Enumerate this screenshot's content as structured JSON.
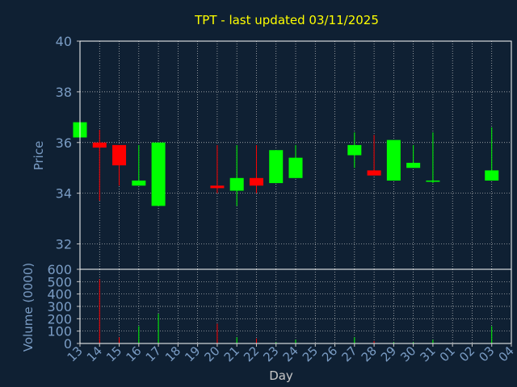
{
  "chart_data": {
    "type": "candlestick",
    "title": "TPT - last updated 03/11/2025",
    "xlabel": "Day",
    "price_panel": {
      "ylabel": "Price",
      "ylim": [
        31.0,
        40.0
      ],
      "yticks": [
        "32",
        "34",
        "36",
        "38",
        "40"
      ],
      "grid": true
    },
    "volume_panel": {
      "ylabel": "Volume (0000)",
      "ylim": [
        0,
        600
      ],
      "yticks": [
        "0",
        "100",
        "200",
        "300",
        "400",
        "500",
        "600"
      ],
      "grid": true
    },
    "days": [
      "13",
      "14",
      "15",
      "16",
      "17",
      "18",
      "19",
      "20",
      "21",
      "22",
      "23",
      "24",
      "25",
      "26",
      "27",
      "28",
      "29",
      "30",
      "31",
      "01",
      "02",
      "03",
      "04"
    ],
    "candles": [
      {
        "day": "13",
        "open": 36.2,
        "close": 36.8,
        "high": 36.8,
        "low": 36.2,
        "volume": 0
      },
      {
        "day": "14",
        "open": 36.0,
        "close": 35.8,
        "high": 36.5,
        "low": 33.7,
        "volume": 520
      },
      {
        "day": "15",
        "open": 35.9,
        "close": 35.1,
        "high": 35.9,
        "low": 34.3,
        "volume": 50
      },
      {
        "day": "16",
        "open": 34.3,
        "close": 34.5,
        "high": 35.9,
        "low": 34.3,
        "volume": 140
      },
      {
        "day": "17",
        "open": 33.5,
        "close": 36.0,
        "high": 36.0,
        "low": 33.5,
        "volume": 240
      },
      {
        "day": "20",
        "open": 34.3,
        "close": 34.2,
        "high": 35.9,
        "low": 34.0,
        "volume": 160
      },
      {
        "day": "21",
        "open": 34.1,
        "close": 34.6,
        "high": 35.9,
        "low": 33.5,
        "volume": 50
      },
      {
        "day": "22",
        "open": 34.6,
        "close": 34.3,
        "high": 35.9,
        "low": 34.0,
        "volume": 40
      },
      {
        "day": "23",
        "open": 34.4,
        "close": 35.7,
        "high": 35.7,
        "low": 34.4,
        "volume": 10
      },
      {
        "day": "24",
        "open": 34.6,
        "close": 35.4,
        "high": 35.9,
        "low": 34.6,
        "volume": 30
      },
      {
        "day": "27",
        "open": 35.5,
        "close": 35.9,
        "high": 36.4,
        "low": 35.0,
        "volume": 50
      },
      {
        "day": "28",
        "open": 34.9,
        "close": 34.7,
        "high": 36.3,
        "low": 34.7,
        "volume": 20
      },
      {
        "day": "29",
        "open": 34.5,
        "close": 36.1,
        "high": 36.1,
        "low": 34.5,
        "volume": 10
      },
      {
        "day": "30",
        "open": 35.0,
        "close": 35.2,
        "high": 35.9,
        "low": 35.0,
        "volume": 10
      },
      {
        "day": "31",
        "open": 34.5,
        "close": 34.5,
        "high": 36.4,
        "low": 34.4,
        "volume": 30
      },
      {
        "day": "03",
        "open": 34.5,
        "close": 34.9,
        "high": 36.6,
        "low": 34.5,
        "volume": 140
      }
    ],
    "colors": {
      "background": "#0f2033",
      "plot_border": "#ffffff",
      "grid": "#c8c8c8",
      "axis_text": "#7a9cc4",
      "title": "#ffff00",
      "up": "#00ff00",
      "down": "#ff0000"
    }
  }
}
